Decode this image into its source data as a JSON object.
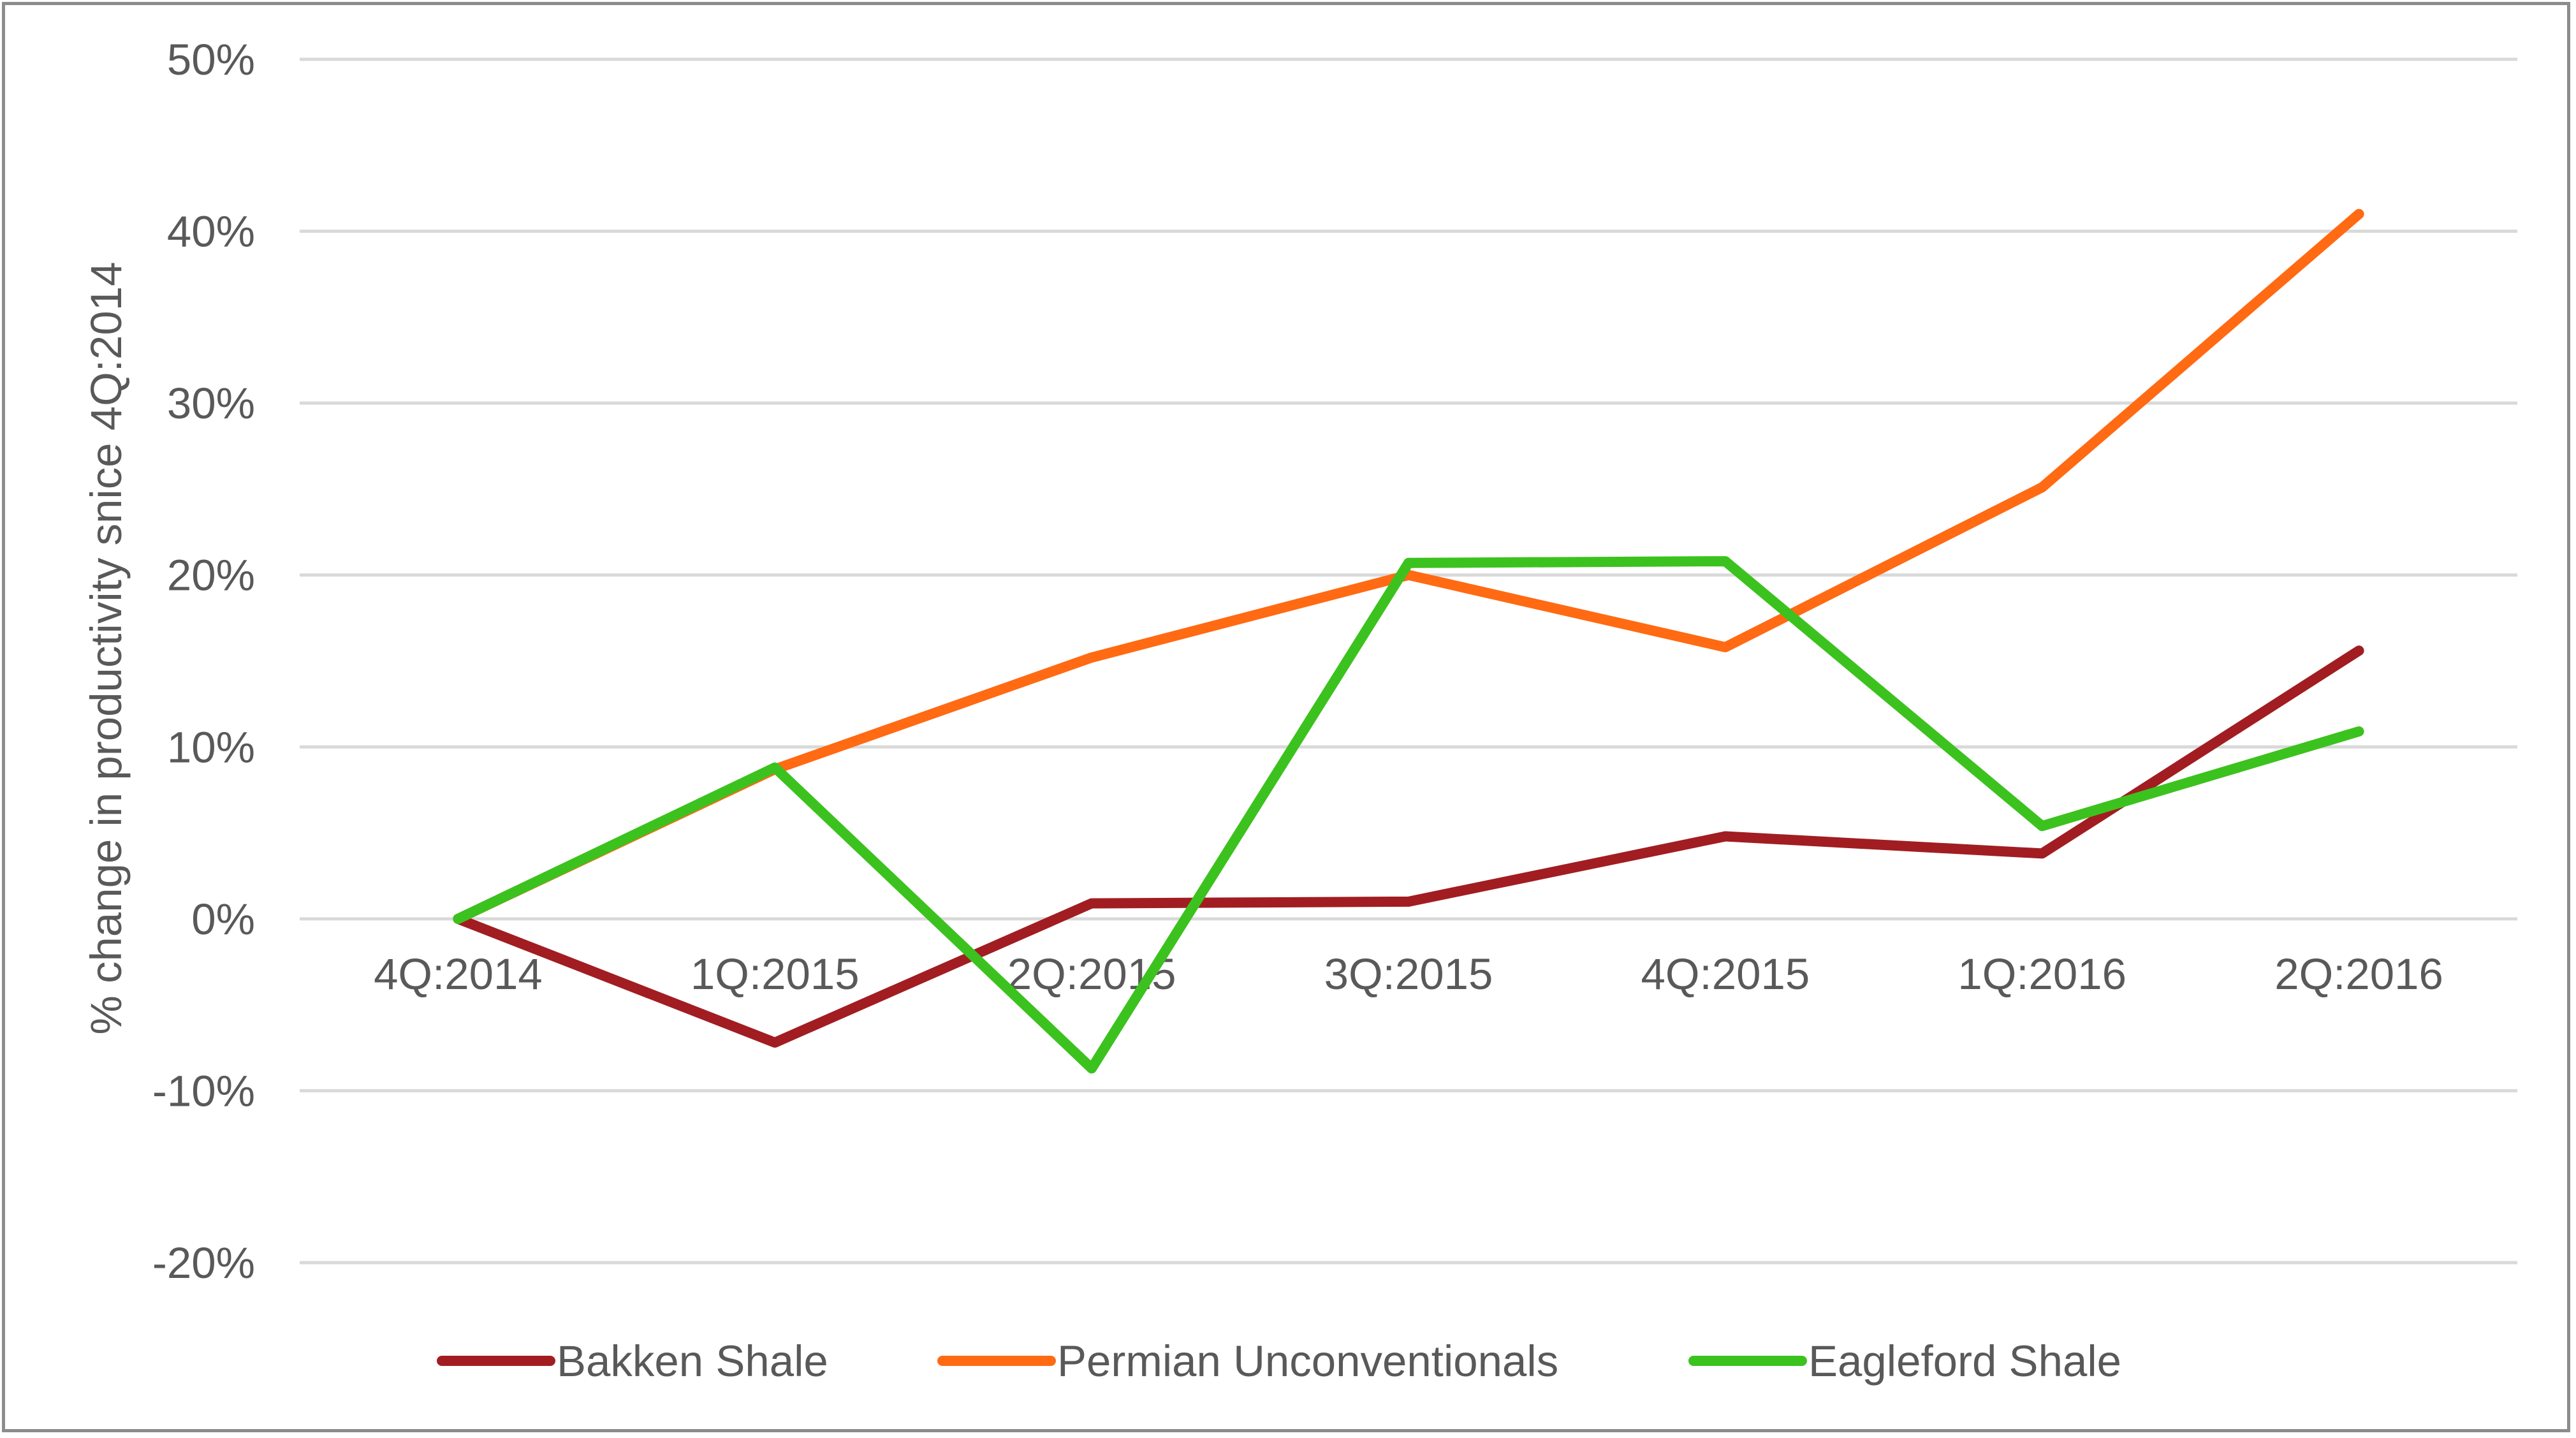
{
  "chart_data": {
    "type": "line",
    "title": "",
    "xlabel": "",
    "ylabel": "% change in productivity snice 4Q:2014",
    "categories": [
      "4Q:2014",
      "1Q:2015",
      "2Q:2015",
      "3Q:2015",
      "4Q:2015",
      "1Q:2016",
      "2Q:2016"
    ],
    "ylim": [
      -20,
      50
    ],
    "yticks": [
      -20,
      -10,
      0,
      10,
      20,
      30,
      40,
      50
    ],
    "ytick_labels": [
      "-20%",
      "-10%",
      "0%",
      "10%",
      "20%",
      "30%",
      "40%",
      "50%"
    ],
    "grid": true,
    "legend_position": "bottom",
    "series": [
      {
        "name": "Bakken Shale",
        "color": "#a11d21",
        "values": [
          0,
          -7.2,
          0.9,
          1.0,
          4.8,
          3.8,
          15.6
        ]
      },
      {
        "name": "Permian Unconventionals",
        "color": "#ff6a13",
        "values": [
          0,
          8.7,
          15.2,
          20.0,
          15.8,
          25.1,
          41.0
        ]
      },
      {
        "name": "Eagleford Shale",
        "color": "#3cc21e",
        "values": [
          0,
          8.8,
          -8.7,
          20.7,
          20.8,
          5.4,
          10.9
        ]
      }
    ]
  }
}
